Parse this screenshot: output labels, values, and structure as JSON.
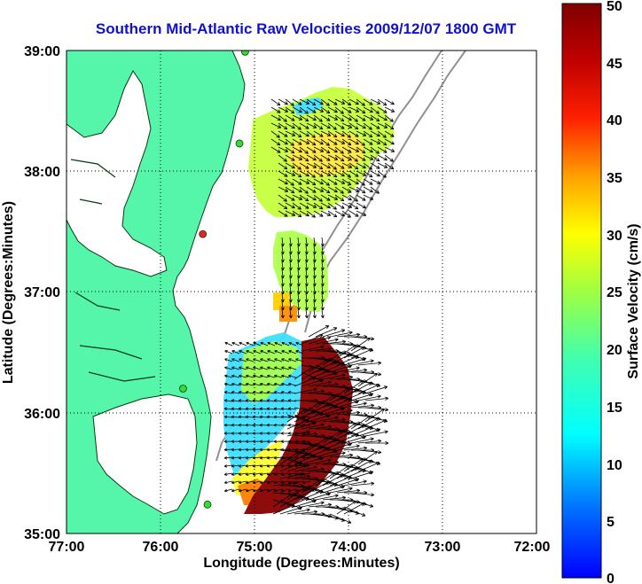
{
  "title": "Southern Mid-Atlantic Raw Velocities 2009/12/07 1800 GMT",
  "x_axis": {
    "label": "Longitude (Degrees:Minutes)",
    "ticks": [
      "77:00",
      "76:00",
      "75:00",
      "74:00",
      "73:00",
      "72:00"
    ]
  },
  "y_axis": {
    "label": "Latitude (Degrees:Minutes)",
    "ticks": [
      "39:00",
      "38:00",
      "37:00",
      "36:00",
      "35:00"
    ]
  },
  "colorbar": {
    "label": "Surface Velocity (cm/s)",
    "ticks": [
      "50",
      "45",
      "40",
      "35",
      "30",
      "25",
      "20",
      "15",
      "10",
      "5",
      "0"
    ],
    "range": [
      0,
      50
    ]
  },
  "colors": {
    "title": "#1010d0",
    "land": "#55f5aa",
    "water": "#ffffff",
    "isobath": "#909090",
    "station_active": "#33dd33",
    "station_alert": "#ee2222"
  },
  "map": {
    "lon_range": [
      -77,
      -72
    ],
    "lat_range": [
      35,
      39
    ],
    "grid": "dotted",
    "stations": [
      {
        "status": "active",
        "lon": -75.1,
        "lat": 38.99
      },
      {
        "status": "active",
        "lon": -75.16,
        "lat": 38.23
      },
      {
        "status": "alert",
        "lon": -75.55,
        "lat": 37.48
      },
      {
        "status": "active",
        "lon": -75.76,
        "lat": 36.2
      },
      {
        "status": "active",
        "lon": -75.5,
        "lat": 35.24
      }
    ]
  }
}
